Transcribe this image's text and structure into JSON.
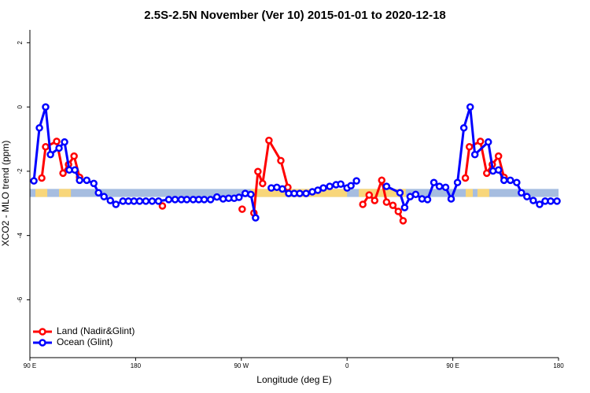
{
  "chart_data": {
    "type": "line",
    "title": "2.5S-2.5N November (Ver 10)   2015-01-01 to 2020-12-18",
    "x_label": "Longitude (deg E)",
    "y_label": "XCO2 - MLO trend (ppm)",
    "xlim": [
      90,
      540
    ],
    "xticks": [
      {
        "value": 90,
        "label": "90 E"
      },
      {
        "value": 180,
        "label": "180"
      },
      {
        "value": 270,
        "label": "90 W"
      },
      {
        "value": 360,
        "label": "0"
      },
      {
        "value": 450,
        "label": "90 E"
      },
      {
        "value": 540,
        "label": "180"
      }
    ],
    "ylim": [
      -7.8,
      2.4
    ],
    "yticks": [
      2,
      0,
      -2,
      -4,
      -6
    ],
    "legend": "bottom-left",
    "band": {
      "ylim": [
        -2.8,
        -2.55
      ],
      "color": "#a6bde0",
      "land_color": "#f8d67a",
      "land_spans": [
        [
          94.7,
          104.8
        ],
        [
          114.8,
          124.9
        ],
        [
          278,
          360
        ],
        [
          370,
          410
        ],
        [
          461,
          467
        ],
        [
          471,
          481
        ]
      ]
    },
    "series": [
      {
        "name": "Land (Nadir&Glint)",
        "color": "#ff0000",
        "x": [
          100.1,
          103.4,
          112.8,
          118.2,
          122.9,
          127.6,
          132.3,
          null,
          202.8,
          null,
          270.7,
          null,
          280.7,
          284.1,
          288.1,
          293.5,
          303.6,
          309.6,
          null,
          373.4,
          378.8,
          383.5,
          389.5,
          393.6,
          399.0,
          403.6,
          407.7,
          null,
          460.7,
          464.1,
          473.5,
          478.9,
          483.6,
          488.9,
          493.6
        ],
        "values": [
          -2.21,
          -1.24,
          -1.07,
          -2.06,
          -1.79,
          -1.53,
          -2.19,
          null,
          -3.08,
          null,
          -3.18,
          null,
          -3.3,
          -2.01,
          -2.38,
          -1.04,
          -1.67,
          -2.5,
          null,
          -3.03,
          -2.74,
          -2.91,
          -2.28,
          -2.96,
          -3.06,
          -3.25,
          -3.54,
          null,
          -2.21,
          -1.24,
          -1.07,
          -2.06,
          -1.79,
          -1.53,
          -2.19
        ]
      },
      {
        "name": "Ocean (Glint)",
        "color": "#0000ff",
        "x": [
          93.4,
          98.1,
          103.4,
          107.5,
          114.8,
          119.5,
          123.5,
          128.3,
          132.3,
          138.4,
          144.4,
          148.4,
          153.1,
          158.5,
          163.2,
          169.2,
          173.9,
          178.6,
          183.4,
          188.7,
          194.1,
          199.5,
          208.2,
          213.6,
          218.9,
          223.6,
          229.0,
          233.7,
          238.4,
          243.8,
          249.2,
          254.5,
          259.2,
          263.9,
          268.0,
          273.3,
          278.1,
          282.1,
          null,
          295.5,
          300.2,
          304.9,
          310.3,
          315.0,
          319.7,
          325.1,
          330.4,
          335.1,
          339.8,
          345.2,
          350.6,
          354.6,
          360.0,
          363.3,
          368.0,
          null,
          393.6,
          405.0,
          409.0,
          413.7,
          418.4,
          423.8,
          428.5,
          433.9,
          438.6,
          443.9,
          448.6,
          454.0,
          459.4,
          464.8,
          468.8,
          480.2,
          484.2,
          488.9,
          493.6,
          499.0,
          504.4,
          508.4,
          513.1,
          518.5,
          523.9,
          528.6,
          533.3,
          538.7
        ],
        "values": [
          -2.3,
          -0.65,
          0,
          -1.48,
          -1.28,
          -1.09,
          -1.96,
          -1.96,
          -2.28,
          -2.28,
          -2.38,
          -2.67,
          -2.79,
          -2.91,
          -3.03,
          -2.93,
          -2.93,
          -2.93,
          -2.93,
          -2.93,
          -2.93,
          -2.93,
          -2.88,
          -2.88,
          -2.88,
          -2.88,
          -2.88,
          -2.88,
          -2.88,
          -2.88,
          -2.8,
          -2.86,
          -2.84,
          -2.84,
          -2.81,
          -2.69,
          -2.72,
          -3.45,
          null,
          -2.52,
          -2.5,
          -2.55,
          -2.69,
          -2.69,
          -2.69,
          -2.69,
          -2.64,
          -2.59,
          -2.52,
          -2.47,
          -2.42,
          -2.4,
          -2.52,
          -2.45,
          -2.3,
          null,
          -2.47,
          -2.67,
          -3.13,
          -2.79,
          -2.72,
          -2.86,
          -2.88,
          -2.35,
          -2.47,
          -2.5,
          -2.86,
          -2.35,
          -0.65,
          0,
          -1.48,
          -1.09,
          -1.99,
          -1.96,
          -2.28,
          -2.28,
          -2.35,
          -2.67,
          -2.79,
          -2.91,
          -3.03,
          -2.93,
          -2.93,
          -2.93
        ]
      }
    ]
  }
}
